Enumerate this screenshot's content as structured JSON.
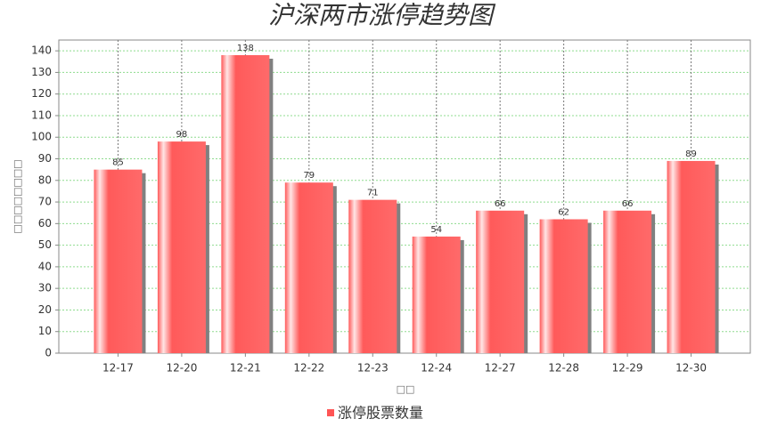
{
  "chart_data": {
    "type": "bar",
    "title": "沪深两市涨停趋势图",
    "x_label": "□□",
    "y_label": "□□□□□□□□",
    "categories": [
      "12-17",
      "12-20",
      "12-21",
      "12-22",
      "12-23",
      "12-24",
      "12-27",
      "12-28",
      "12-29",
      "12-30"
    ],
    "series": [
      {
        "name": "涨停股票数量",
        "color": "#ff5555",
        "values": [
          85,
          98,
          138,
          79,
          71,
          54,
          66,
          62,
          66,
          89
        ]
      }
    ],
    "ylim": [
      0,
      145
    ],
    "yticks": [
      0,
      10,
      20,
      30,
      40,
      50,
      60,
      70,
      80,
      90,
      100,
      110,
      120,
      130,
      140
    ],
    "grid": true
  }
}
